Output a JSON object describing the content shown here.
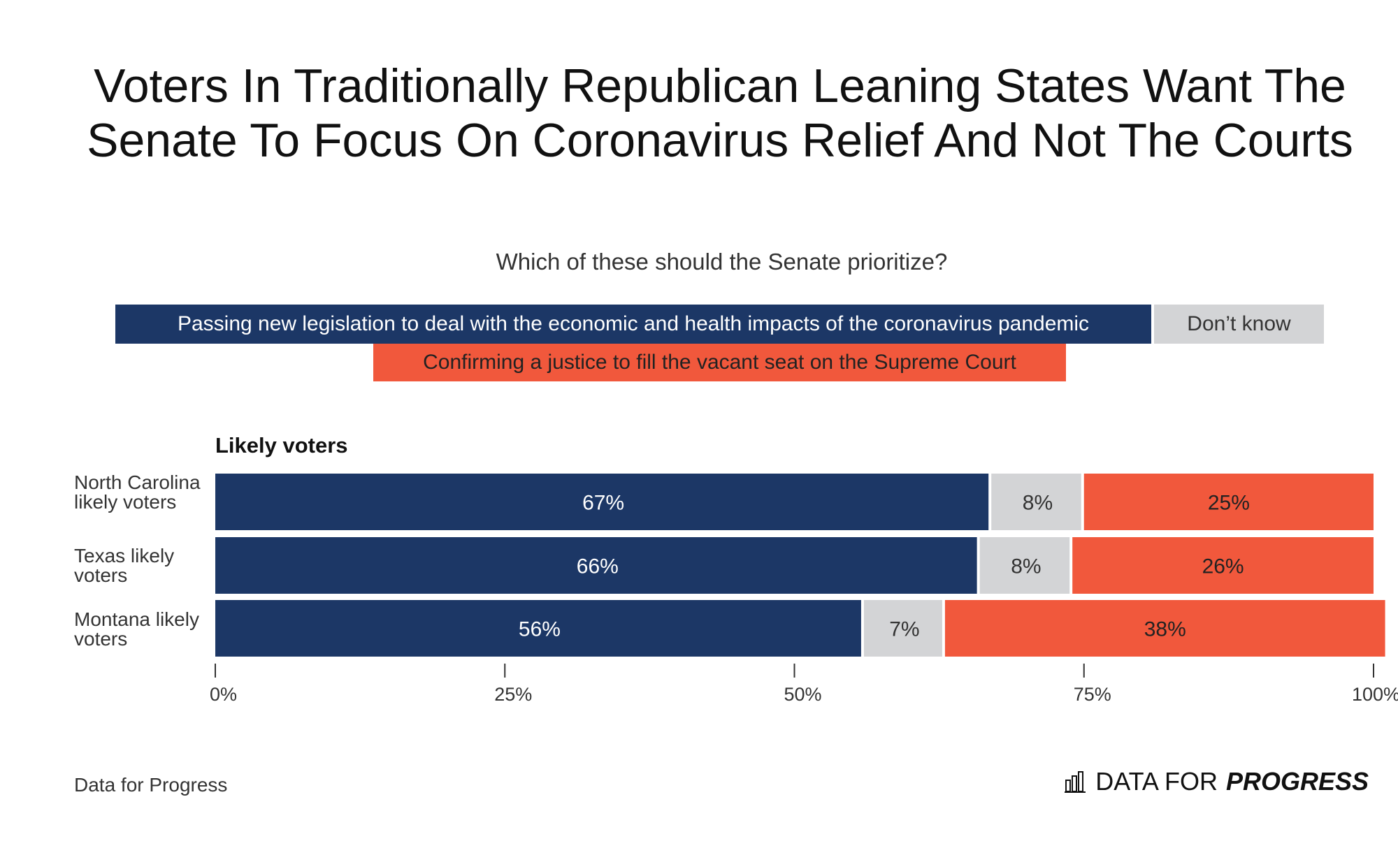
{
  "title": "Voters In Traditionally Republican Leaning States Want The Senate To Focus On Coronavirus Relief And Not The Courts",
  "subtitle": "Which of these should the Senate prioritize?",
  "legend": {
    "passing": "Passing new legislation to deal with the economic and health impacts of the coronavirus pandemic",
    "dont_know": "Don’t know",
    "confirming": "Confirming a justice to fill the vacant seat on the Supreme Court"
  },
  "panel_title": "Likely voters",
  "rows": [
    {
      "label": "North Carolina likely voters"
    },
    {
      "label": "Texas likely voters"
    },
    {
      "label": "Montana likely voters"
    }
  ],
  "source": "Data for Progress",
  "brand": {
    "light": "DATA FOR",
    "bold": "PROGRESS"
  },
  "colors": {
    "navy": "#1c3766",
    "gray": "#d3d4d6",
    "red": "#f1583c"
  },
  "chart_data": {
    "type": "bar",
    "orientation": "horizontal",
    "stacked": true,
    "title": "Likely voters",
    "categories": [
      "North Carolina likely voters",
      "Texas likely voters",
      "Montana likely voters"
    ],
    "series": [
      {
        "name": "Passing new legislation to deal with the economic and health impacts of the coronavirus pandemic",
        "color": "#1c3766",
        "text_color": "#ffffff",
        "values": [
          67,
          66,
          56
        ]
      },
      {
        "name": "Don’t know",
        "color": "#d3d4d6",
        "text_color": "#333333",
        "values": [
          8,
          8,
          7
        ]
      },
      {
        "name": "Confirming a justice to fill the vacant seat on the Supreme Court",
        "color": "#f1583c",
        "text_color": "#222222",
        "values": [
          25,
          26,
          38
        ]
      }
    ],
    "xlim": [
      0,
      100
    ],
    "xticks": [
      0,
      25,
      50,
      75,
      100
    ],
    "xtick_labels": [
      "0%",
      "25%",
      "50%",
      "75%",
      "100%"
    ],
    "value_suffix": "%"
  }
}
